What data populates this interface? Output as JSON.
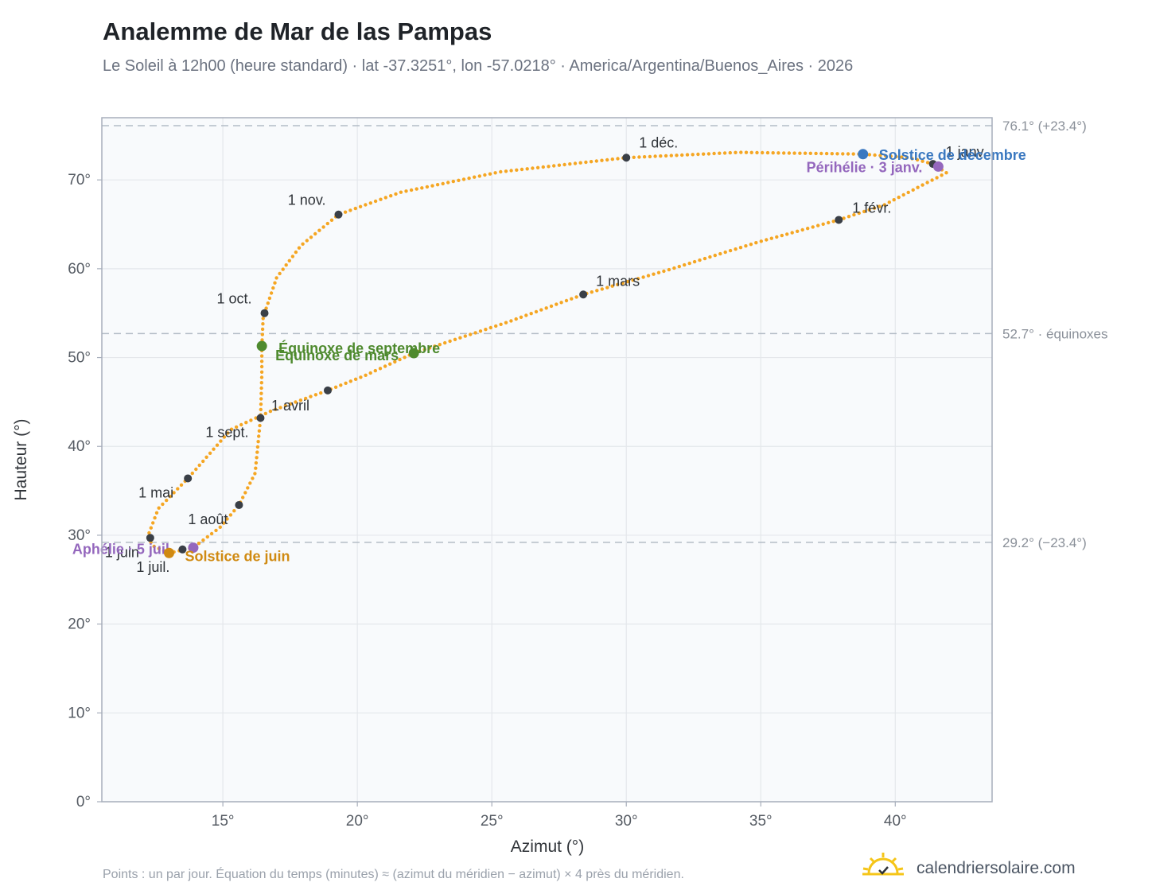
{
  "header": {
    "title": "Analemme de Mar de las Pampas",
    "subtitle": "Le Soleil à 12h00 (heure standard) · lat -37.3251°, lon -57.0218° · America/Argentina/Buenos_Aires · 2026"
  },
  "footer": {
    "note": "Points : un par jour. Équation du temps (minutes) ≈ (azimut du méridien − azimut) × 4 près du méridien.",
    "brand": "calendriersolaire.com"
  },
  "colors": {
    "curve": "#f5a623",
    "month_marker": "#3a3f47",
    "march_equinox": "#4e8a2e",
    "september_equinox": "#4e8a2e",
    "december_solstice": "#3a78c0",
    "june_solstice": "#d08a12",
    "apsides": "#9467bd",
    "plot_background": "#f8fafc",
    "grid": "#e4e7eb",
    "frame": "#a7aebb",
    "reference_line": "#b3bcc6",
    "logo": "#f5c518"
  },
  "chart_data": {
    "type": "scatter",
    "xlabel": "Azimut (°)",
    "ylabel": "Hauteur (°)",
    "xlim": [
      10.5,
      43.6
    ],
    "ylim": [
      0,
      77
    ],
    "x_ticks": [
      15,
      20,
      25,
      30,
      35,
      40
    ],
    "y_ticks": [
      0,
      10,
      20,
      30,
      40,
      50,
      60,
      70
    ],
    "x_tick_labels": [
      "15°",
      "20°",
      "25°",
      "30°",
      "35°",
      "40°"
    ],
    "y_tick_labels": [
      "0°",
      "10°",
      "20°",
      "30°",
      "40°",
      "50°",
      "60°",
      "70°"
    ],
    "grid": true,
    "curve_points": [
      [
        41.4,
        71.8
      ],
      [
        41.9,
        70.8
      ],
      [
        41.0,
        69.4
      ],
      [
        39.6,
        67.2
      ],
      [
        37.9,
        65.5
      ],
      [
        34.9,
        63.0
      ],
      [
        31.6,
        59.9
      ],
      [
        28.4,
        57.1
      ],
      [
        25.6,
        54.0
      ],
      [
        23.3,
        51.7
      ],
      [
        22.1,
        50.5
      ],
      [
        20.3,
        48.0
      ],
      [
        18.9,
        46.3
      ],
      [
        16.8,
        44.0
      ],
      [
        15.3,
        41.9
      ],
      [
        13.7,
        36.4
      ],
      [
        12.6,
        33.0
      ],
      [
        12.2,
        29.8
      ],
      [
        12.4,
        28.8
      ],
      [
        13.0,
        28.0
      ],
      [
        13.6,
        28.4
      ],
      [
        13.9,
        28.6
      ],
      [
        14.9,
        30.9
      ],
      [
        15.6,
        33.4
      ],
      [
        16.2,
        37.0
      ],
      [
        16.4,
        43.2
      ],
      [
        16.45,
        48.3
      ],
      [
        16.45,
        51.2
      ],
      [
        16.5,
        54.6
      ],
      [
        16.55,
        55.0
      ],
      [
        17.0,
        59.0
      ],
      [
        17.9,
        62.6
      ],
      [
        19.3,
        66.1
      ],
      [
        21.6,
        68.6
      ],
      [
        25.3,
        70.9
      ],
      [
        30.0,
        72.5
      ],
      [
        34.2,
        73.1
      ],
      [
        38.8,
        72.9
      ],
      [
        40.5,
        72.5
      ],
      [
        41.4,
        71.8
      ]
    ],
    "month_markers": [
      {
        "label": "1 janv.",
        "x": 41.4,
        "y": 71.8
      },
      {
        "label": "1 févr.",
        "x": 37.9,
        "y": 65.5
      },
      {
        "label": "1 mars",
        "x": 28.4,
        "y": 57.1
      },
      {
        "label": "1 avril",
        "x": 18.9,
        "y": 46.3
      },
      {
        "label": "1 mai",
        "x": 13.7,
        "y": 36.4
      },
      {
        "label": "1 juin",
        "x": 12.3,
        "y": 29.7
      },
      {
        "label": "1 juil.",
        "x": 13.5,
        "y": 28.4
      },
      {
        "label": "1 août",
        "x": 15.6,
        "y": 33.4
      },
      {
        "label": "1 sept.",
        "x": 16.4,
        "y": 43.2
      },
      {
        "label": "1 oct.",
        "x": 16.55,
        "y": 55.0
      },
      {
        "label": "1 nov.",
        "x": 19.3,
        "y": 66.1
      },
      {
        "label": "1 déc.",
        "x": 30.0,
        "y": 72.5
      }
    ],
    "events": [
      {
        "label": "Solstice de décembre",
        "x": 38.8,
        "y": 72.9,
        "color_key": "december_solstice"
      },
      {
        "label": "Périhélie · 3 janv.",
        "x": 41.6,
        "y": 71.5,
        "color_key": "apsides"
      },
      {
        "label": "Équinoxe de septembre",
        "x": 16.45,
        "y": 51.3,
        "color_key": "september_equinox"
      },
      {
        "label": "Équinoxe de mars",
        "x": 22.1,
        "y": 50.5,
        "color_key": "march_equinox"
      },
      {
        "label": "Aphélie · 5 juil.",
        "x": 13.9,
        "y": 28.6,
        "color_key": "apsides"
      },
      {
        "label": "Solstice de juin",
        "x": 13.0,
        "y": 28.0,
        "color_key": "june_solstice"
      }
    ],
    "reference_lines": [
      {
        "y": 76.1,
        "label": "76.1° (+23.4°)"
      },
      {
        "y": 52.7,
        "label": "52.7° · équinoxes"
      },
      {
        "y": 29.2,
        "label": "29.2° (−23.4°)"
      }
    ]
  }
}
